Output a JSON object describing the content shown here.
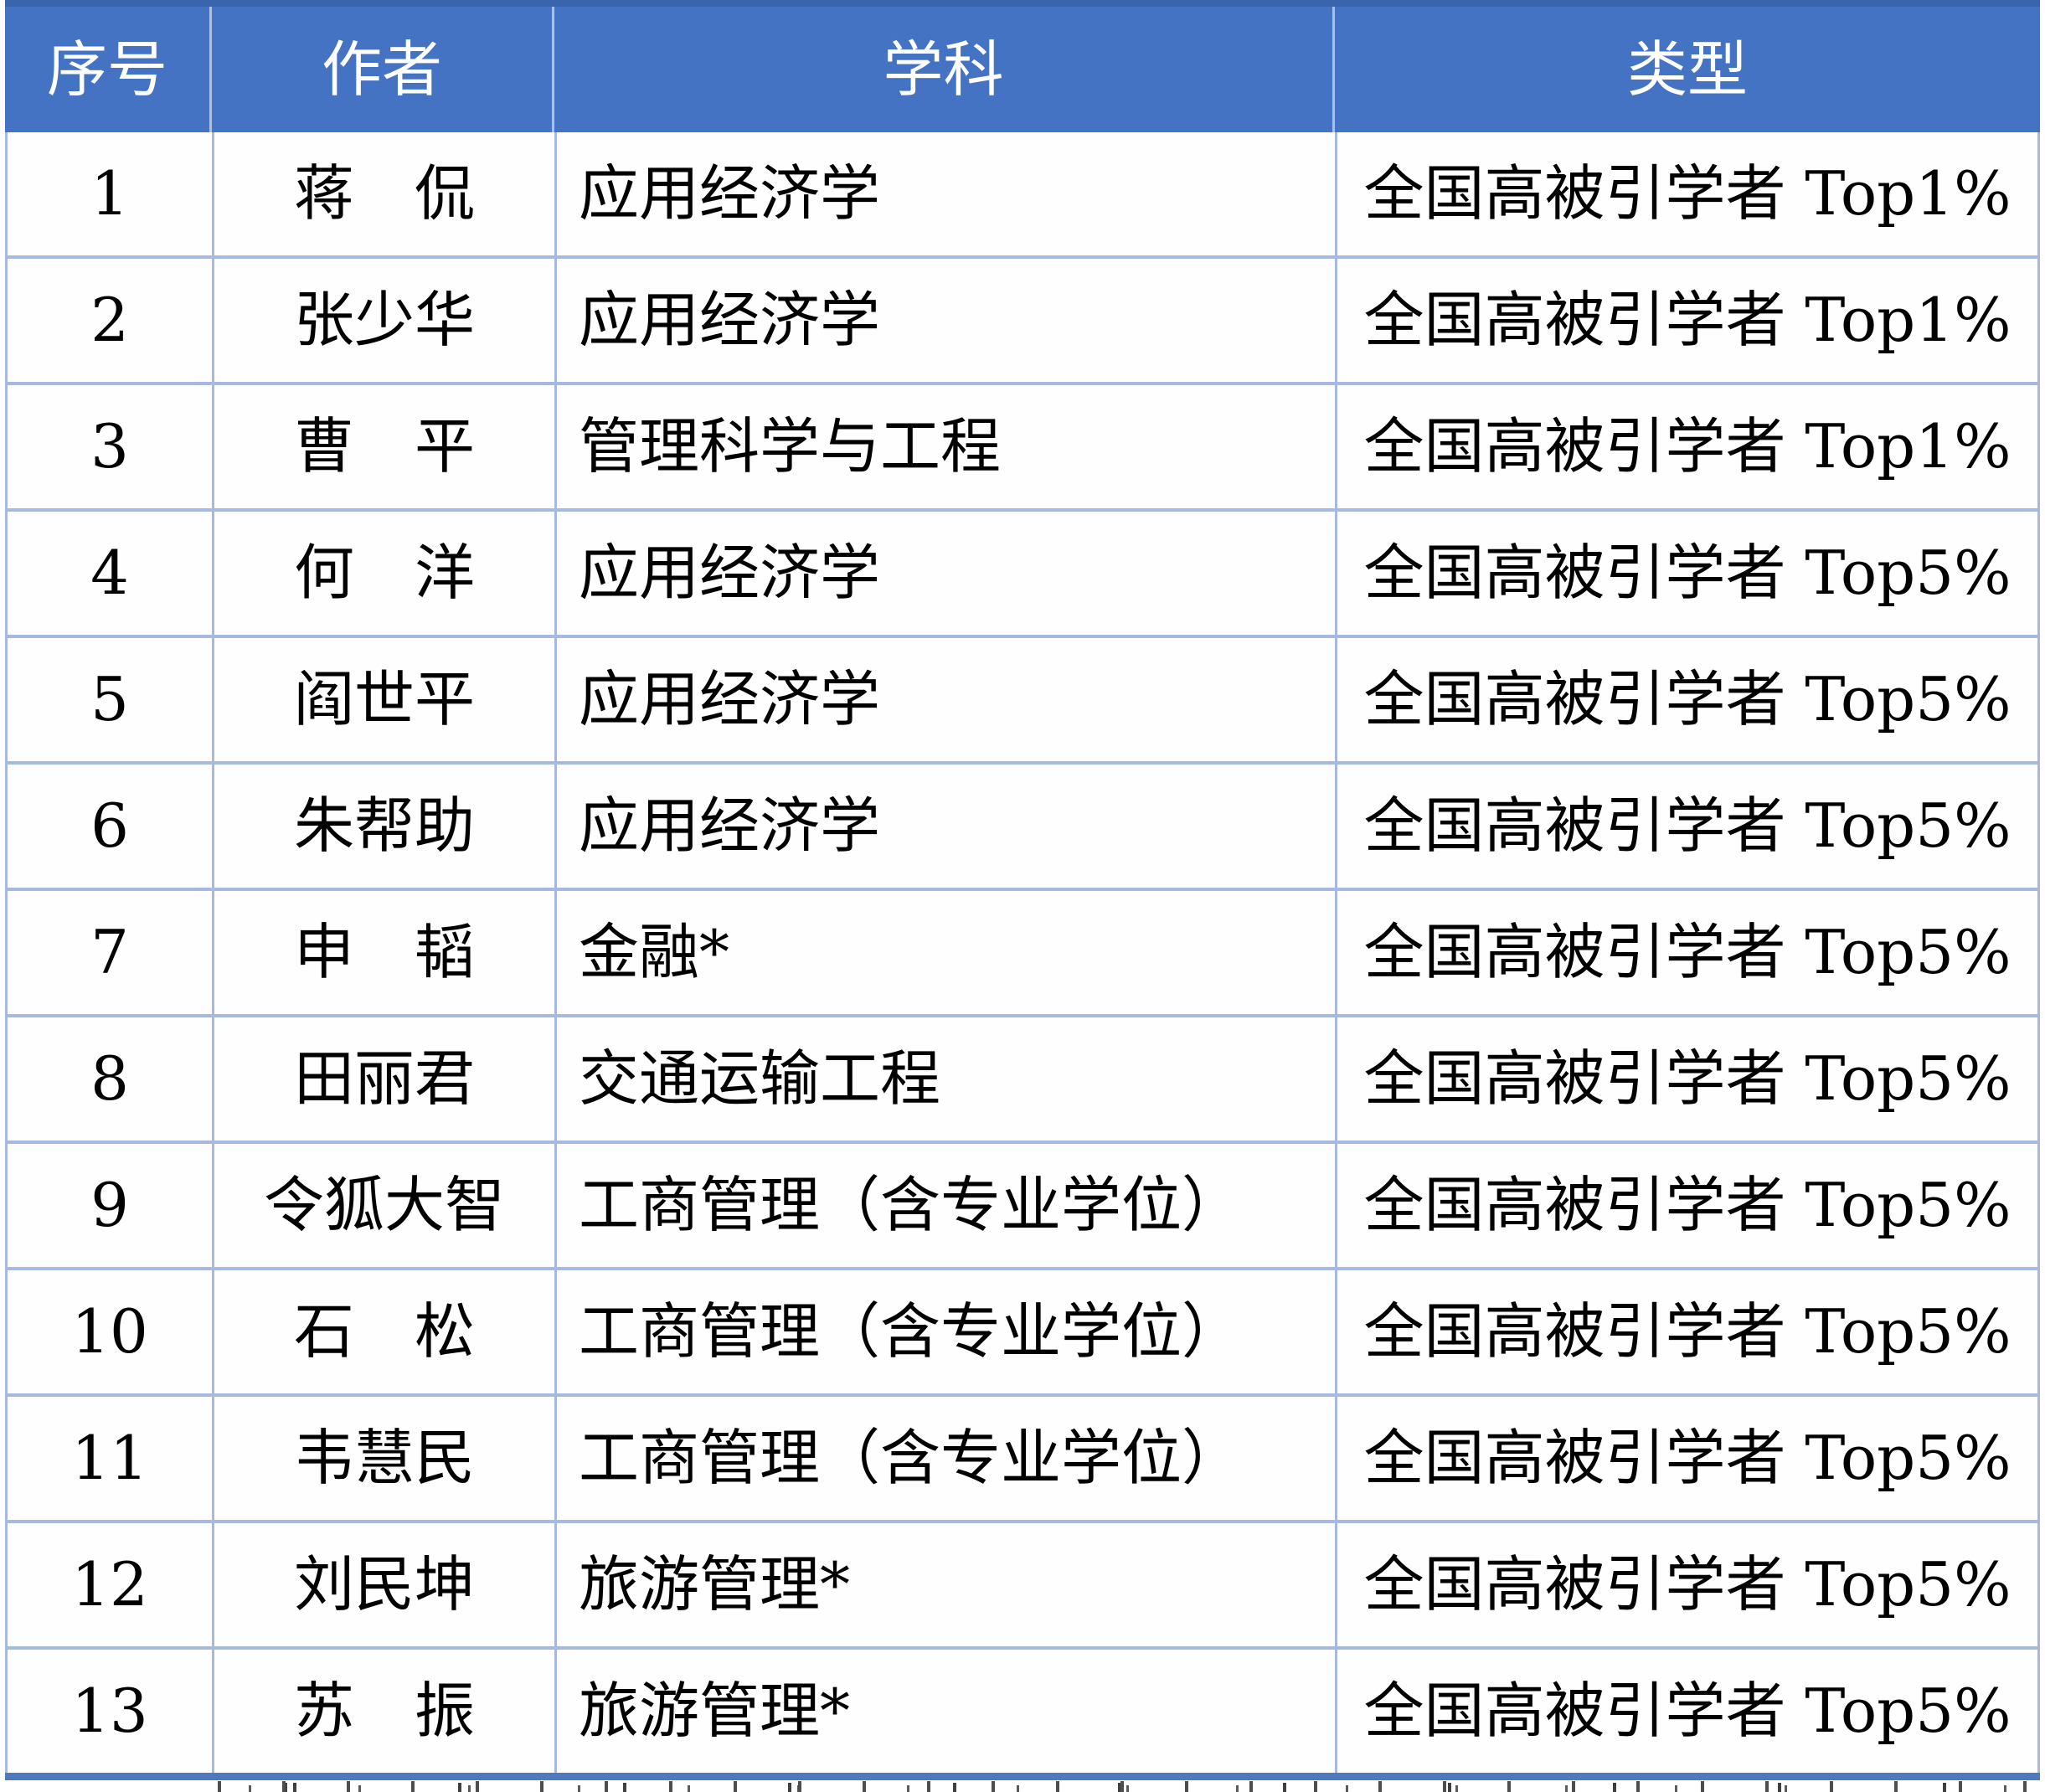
{
  "colors": {
    "header_bg": "#4573C4",
    "header_top": "#3A64AE",
    "header_text": "#FFFFFF",
    "grid": "#A6BAE0",
    "bottom_border": "#4E79BE",
    "body_text": "#000000"
  },
  "table": {
    "columns": [
      {
        "label": "序号"
      },
      {
        "label": "作者"
      },
      {
        "label": "学科"
      },
      {
        "label": "类型"
      }
    ],
    "rows": [
      {
        "index": "1",
        "author": "蒋　侃",
        "discipline": "应用经济学",
        "type": "全国高被引学者 Top1%"
      },
      {
        "index": "2",
        "author": "张少华",
        "discipline": "应用经济学",
        "type": "全国高被引学者 Top1%"
      },
      {
        "index": "3",
        "author": "曹　平",
        "discipline": "管理科学与工程",
        "type": "全国高被引学者 Top1%"
      },
      {
        "index": "4",
        "author": "何　洋",
        "discipline": "应用经济学",
        "type": "全国高被引学者 Top5%"
      },
      {
        "index": "5",
        "author": "阎世平",
        "discipline": "应用经济学",
        "type": "全国高被引学者 Top5%"
      },
      {
        "index": "6",
        "author": "朱帮助",
        "discipline": "应用经济学",
        "type": "全国高被引学者 Top5%"
      },
      {
        "index": "7",
        "author": "申　韬",
        "discipline": "金融*",
        "type": "全国高被引学者 Top5%"
      },
      {
        "index": "8",
        "author": "田丽君",
        "discipline": "交通运输工程",
        "type": "全国高被引学者 Top5%"
      },
      {
        "index": "9",
        "author": "令狐大智",
        "discipline": "工商管理（含专业学位）",
        "type": "全国高被引学者 Top5%"
      },
      {
        "index": "10",
        "author": "石　松",
        "discipline": "工商管理（含专业学位）",
        "type": "全国高被引学者 Top5%"
      },
      {
        "index": "11",
        "author": "韦慧民",
        "discipline": "工商管理（含专业学位）",
        "type": "全国高被引学者 Top5%"
      },
      {
        "index": "12",
        "author": "刘民坤",
        "discipline": "旅游管理*",
        "type": "全国高被引学者 Top5%"
      },
      {
        "index": "13",
        "author": "苏　振",
        "discipline": "旅游管理*",
        "type": "全国高被引学者 Top5%"
      }
    ]
  }
}
